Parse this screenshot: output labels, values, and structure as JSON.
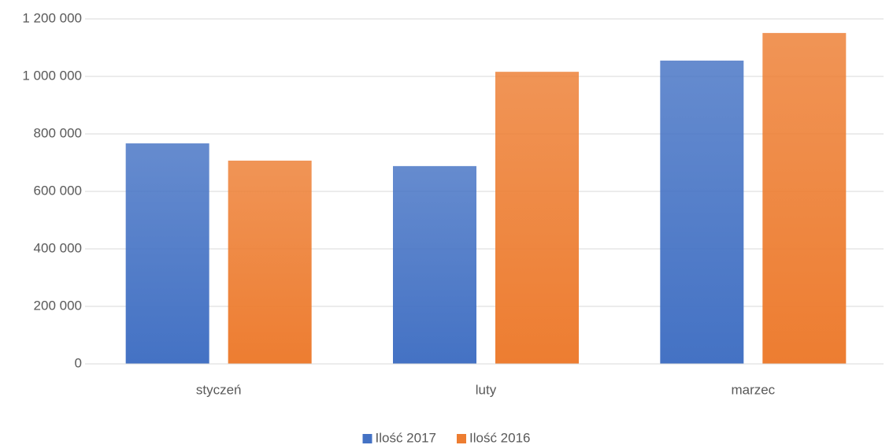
{
  "chart_data": {
    "type": "bar",
    "categories": [
      "styczeń",
      "luty",
      "marzec"
    ],
    "series": [
      {
        "name": "Ilość 2017",
        "color": "#4472c4",
        "values": [
          767000,
          688000,
          1055000
        ]
      },
      {
        "name": "Ilość 2016",
        "color": "#ed7d31",
        "values": [
          707000,
          1016000,
          1151000
        ]
      }
    ],
    "ylim": [
      0,
      1200000
    ],
    "yticks": [
      0,
      {
        "value": 200000,
        "label": "200 000"
      },
      {
        "value": 400000,
        "label": "400 000"
      },
      {
        "value": 600000,
        "label": "600 000"
      },
      {
        "value": 800000,
        "label": "800 000"
      },
      {
        "value": 1000000,
        "label": "1 000 000"
      },
      {
        "value": 1200000,
        "label": "1 200 000"
      }
    ],
    "grid": true,
    "legend": "bottom"
  }
}
